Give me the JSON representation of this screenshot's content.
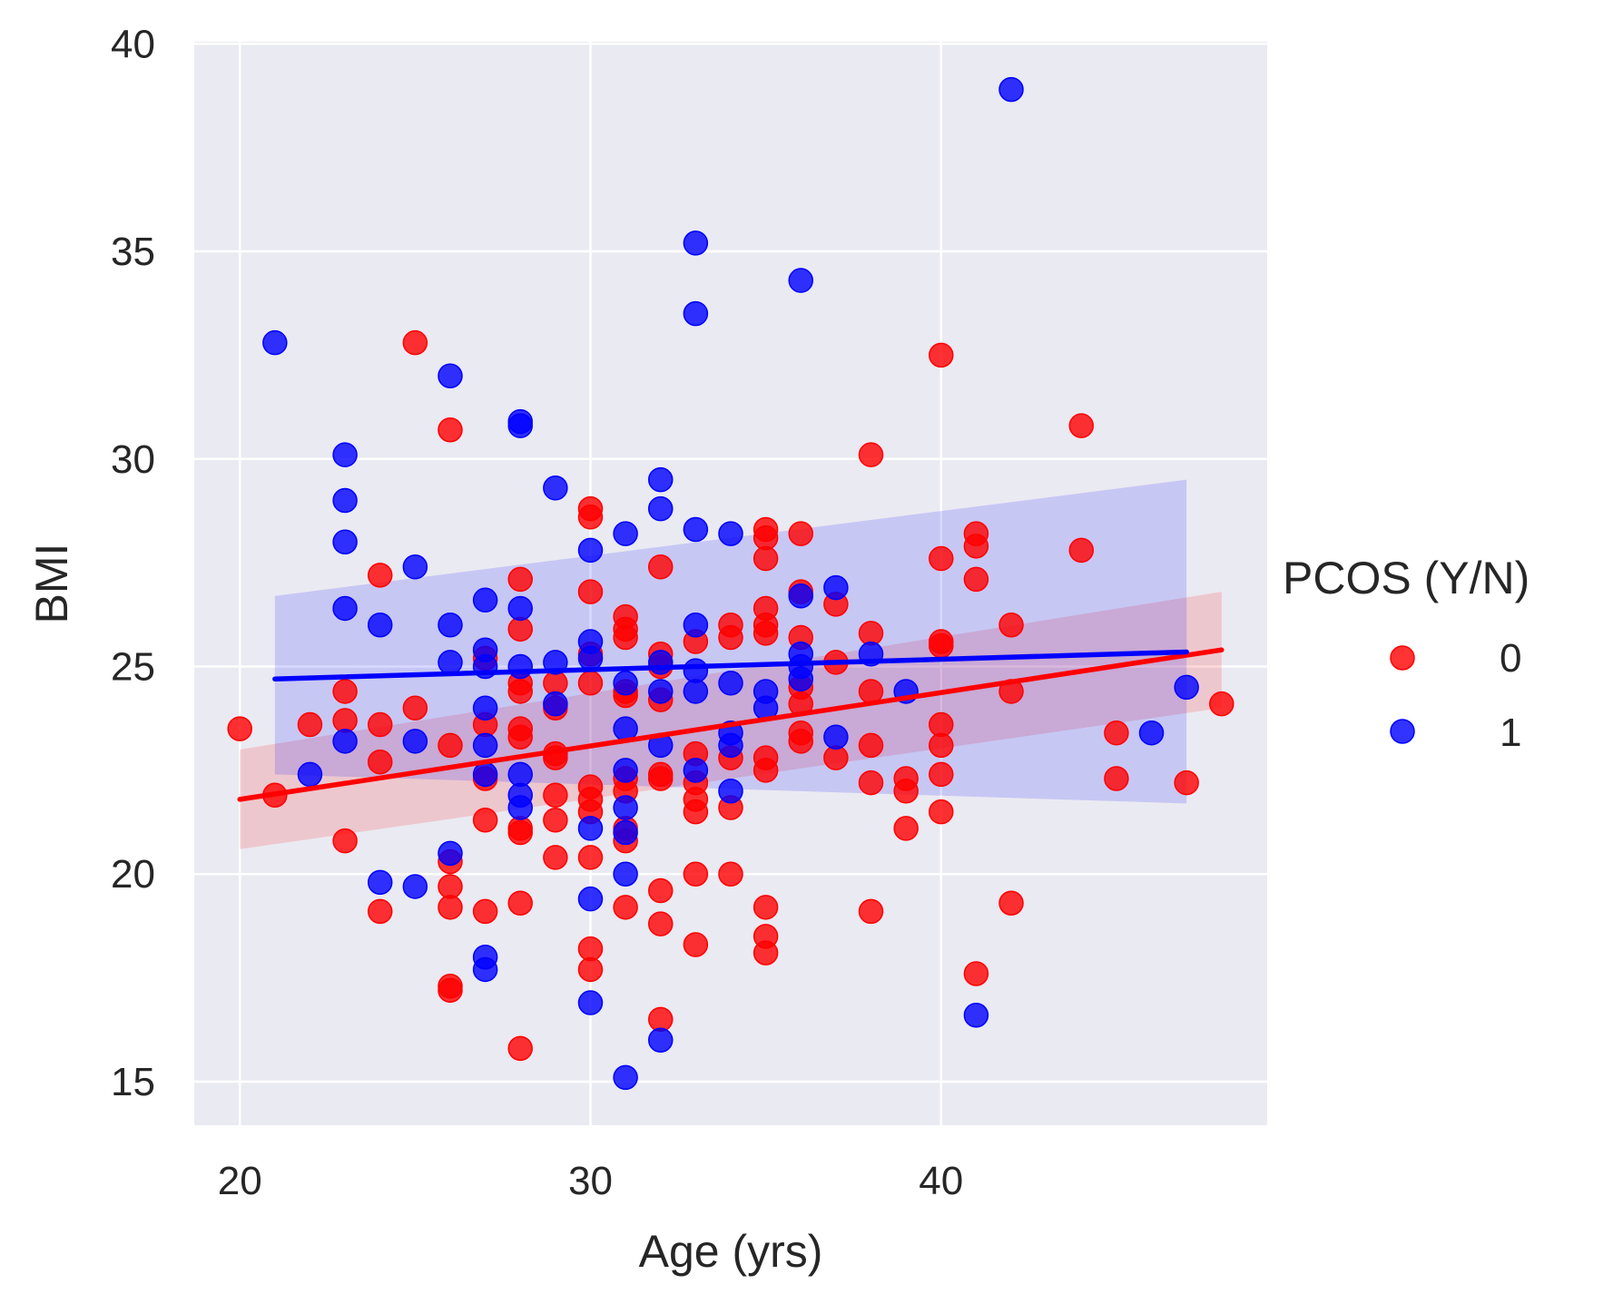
{
  "chart_data": {
    "type": "scatter",
    "xlabel": "Age (yrs)",
    "ylabel": "BMI",
    "xlim": [
      18.7,
      49.3
    ],
    "ylim": [
      13.95,
      40.05
    ],
    "xticks": [
      20,
      30,
      40
    ],
    "yticks": [
      15,
      20,
      25,
      30,
      35,
      40
    ],
    "grid": true,
    "legend": {
      "title": "PCOS (Y/N)",
      "placement": "right"
    },
    "series": [
      {
        "name": "0",
        "color": "#ff0000",
        "regression": {
          "x": [
            20,
            48
          ],
          "y": [
            21.8,
            25.4
          ],
          "ci_upper": [
            23.0,
            26.8
          ],
          "ci_lower": [
            20.6,
            24.0
          ]
        },
        "points": [
          [
            20,
            23.5
          ],
          [
            21,
            21.9
          ],
          [
            22,
            23.6
          ],
          [
            23,
            24.4
          ],
          [
            23,
            23.7
          ],
          [
            23,
            20.8
          ],
          [
            24,
            27.2
          ],
          [
            24,
            23.6
          ],
          [
            24,
            22.7
          ],
          [
            24,
            19.1
          ],
          [
            25,
            32.8
          ],
          [
            25,
            24.0
          ],
          [
            26,
            30.7
          ],
          [
            26,
            23.1
          ],
          [
            26,
            20.3
          ],
          [
            26,
            19.7
          ],
          [
            26,
            19.2
          ],
          [
            26,
            17.3
          ],
          [
            26,
            17.2
          ],
          [
            27,
            25.2
          ],
          [
            27,
            23.6
          ],
          [
            27,
            22.3
          ],
          [
            27,
            21.3
          ],
          [
            27,
            19.1
          ],
          [
            28,
            27.1
          ],
          [
            28,
            25.9
          ],
          [
            28,
            24.6
          ],
          [
            28,
            24.4
          ],
          [
            28,
            23.5
          ],
          [
            28,
            23.3
          ],
          [
            28,
            21.1
          ],
          [
            28,
            21.0
          ],
          [
            28,
            19.3
          ],
          [
            28,
            15.8
          ],
          [
            29,
            24.6
          ],
          [
            29,
            24.0
          ],
          [
            29,
            22.9
          ],
          [
            29,
            22.8
          ],
          [
            29,
            21.9
          ],
          [
            29,
            21.3
          ],
          [
            29,
            20.4
          ],
          [
            30,
            28.8
          ],
          [
            30,
            28.6
          ],
          [
            30,
            26.8
          ],
          [
            30,
            25.3
          ],
          [
            30,
            24.6
          ],
          [
            30,
            22.1
          ],
          [
            30,
            21.8
          ],
          [
            30,
            21.5
          ],
          [
            30,
            20.4
          ],
          [
            30,
            18.2
          ],
          [
            30,
            17.7
          ],
          [
            31,
            26.2
          ],
          [
            31,
            25.9
          ],
          [
            31,
            25.7
          ],
          [
            31,
            24.4
          ],
          [
            31,
            24.3
          ],
          [
            31,
            22.3
          ],
          [
            31,
            22.0
          ],
          [
            31,
            21.1
          ],
          [
            31,
            20.8
          ],
          [
            31,
            19.2
          ],
          [
            32,
            27.4
          ],
          [
            32,
            25.3
          ],
          [
            32,
            25.0
          ],
          [
            32,
            24.2
          ],
          [
            32,
            22.4
          ],
          [
            32,
            22.3
          ],
          [
            32,
            19.6
          ],
          [
            32,
            18.8
          ],
          [
            32,
            16.5
          ],
          [
            33,
            25.6
          ],
          [
            33,
            22.9
          ],
          [
            33,
            22.2
          ],
          [
            33,
            21.8
          ],
          [
            33,
            21.5
          ],
          [
            33,
            20.0
          ],
          [
            33,
            18.3
          ],
          [
            34,
            26.0
          ],
          [
            34,
            25.7
          ],
          [
            34,
            22.8
          ],
          [
            34,
            21.6
          ],
          [
            34,
            20.0
          ],
          [
            35,
            28.3
          ],
          [
            35,
            28.1
          ],
          [
            35,
            27.6
          ],
          [
            35,
            26.4
          ],
          [
            35,
            26.0
          ],
          [
            35,
            25.8
          ],
          [
            35,
            22.8
          ],
          [
            35,
            22.5
          ],
          [
            35,
            19.2
          ],
          [
            35,
            18.5
          ],
          [
            35,
            18.1
          ],
          [
            36,
            28.2
          ],
          [
            36,
            26.8
          ],
          [
            36,
            25.7
          ],
          [
            36,
            24.5
          ],
          [
            36,
            24.1
          ],
          [
            36,
            23.4
          ],
          [
            36,
            23.2
          ],
          [
            37,
            26.5
          ],
          [
            37,
            25.1
          ],
          [
            37,
            22.8
          ],
          [
            38,
            30.1
          ],
          [
            38,
            25.8
          ],
          [
            38,
            24.4
          ],
          [
            38,
            23.1
          ],
          [
            38,
            22.2
          ],
          [
            38,
            19.1
          ],
          [
            39,
            22.3
          ],
          [
            39,
            22.0
          ],
          [
            39,
            21.1
          ],
          [
            40,
            32.5
          ],
          [
            40,
            27.6
          ],
          [
            40,
            25.6
          ],
          [
            40,
            25.5
          ],
          [
            40,
            23.6
          ],
          [
            40,
            23.1
          ],
          [
            40,
            22.4
          ],
          [
            40,
            21.5
          ],
          [
            41,
            28.2
          ],
          [
            41,
            27.9
          ],
          [
            41,
            27.1
          ],
          [
            41,
            17.6
          ],
          [
            42,
            26.0
          ],
          [
            42,
            24.4
          ],
          [
            42,
            19.3
          ],
          [
            44,
            30.8
          ],
          [
            44,
            27.8
          ],
          [
            45,
            23.4
          ],
          [
            45,
            22.3
          ],
          [
            47,
            22.2
          ],
          [
            48,
            24.1
          ]
        ]
      },
      {
        "name": "1",
        "color": "#0000ff",
        "regression": {
          "x": [
            21,
            47
          ],
          "y": [
            24.7,
            25.35
          ],
          "ci_upper": [
            26.7,
            29.5
          ],
          "ci_lower": [
            22.4,
            21.7
          ]
        },
        "points": [
          [
            21,
            32.8
          ],
          [
            22,
            22.4
          ],
          [
            23,
            30.1
          ],
          [
            23,
            29.0
          ],
          [
            23,
            28.0
          ],
          [
            23,
            26.4
          ],
          [
            23,
            23.2
          ],
          [
            24,
            26.0
          ],
          [
            24,
            19.8
          ],
          [
            25,
            27.4
          ],
          [
            25,
            23.2
          ],
          [
            25,
            19.7
          ],
          [
            26,
            32.0
          ],
          [
            26,
            26.0
          ],
          [
            26,
            25.1
          ],
          [
            26,
            20.5
          ],
          [
            27,
            26.6
          ],
          [
            27,
            25.4
          ],
          [
            27,
            25.0
          ],
          [
            27,
            24.0
          ],
          [
            27,
            23.1
          ],
          [
            27,
            22.4
          ],
          [
            27,
            18.0
          ],
          [
            27,
            17.7
          ],
          [
            28,
            30.9
          ],
          [
            28,
            30.8
          ],
          [
            28,
            26.4
          ],
          [
            28,
            25.0
          ],
          [
            28,
            22.4
          ],
          [
            28,
            21.9
          ],
          [
            28,
            21.6
          ],
          [
            29,
            29.3
          ],
          [
            29,
            25.1
          ],
          [
            29,
            24.1
          ],
          [
            30,
            27.8
          ],
          [
            30,
            25.6
          ],
          [
            30,
            25.2
          ],
          [
            30,
            21.1
          ],
          [
            30,
            19.4
          ],
          [
            30,
            16.9
          ],
          [
            31,
            28.2
          ],
          [
            31,
            24.6
          ],
          [
            31,
            23.5
          ],
          [
            31,
            22.5
          ],
          [
            31,
            21.6
          ],
          [
            31,
            21.0
          ],
          [
            31,
            20.0
          ],
          [
            31,
            15.1
          ],
          [
            32,
            29.5
          ],
          [
            32,
            28.8
          ],
          [
            32,
            25.1
          ],
          [
            32,
            24.4
          ],
          [
            32,
            23.1
          ],
          [
            32,
            16.0
          ],
          [
            33,
            35.2
          ],
          [
            33,
            33.5
          ],
          [
            33,
            28.3
          ],
          [
            33,
            26.0
          ],
          [
            33,
            24.9
          ],
          [
            33,
            24.4
          ],
          [
            33,
            22.5
          ],
          [
            34,
            28.2
          ],
          [
            34,
            24.6
          ],
          [
            34,
            23.4
          ],
          [
            34,
            23.1
          ],
          [
            34,
            22.0
          ],
          [
            35,
            24.4
          ],
          [
            35,
            24.0
          ],
          [
            36,
            34.3
          ],
          [
            36,
            26.7
          ],
          [
            36,
            25.3
          ],
          [
            36,
            25.0
          ],
          [
            36,
            24.7
          ],
          [
            37,
            26.9
          ],
          [
            37,
            23.3
          ],
          [
            38,
            25.3
          ],
          [
            39,
            24.4
          ],
          [
            41,
            16.6
          ],
          [
            42,
            38.9
          ],
          [
            46,
            23.4
          ],
          [
            47,
            24.5
          ]
        ]
      }
    ]
  }
}
